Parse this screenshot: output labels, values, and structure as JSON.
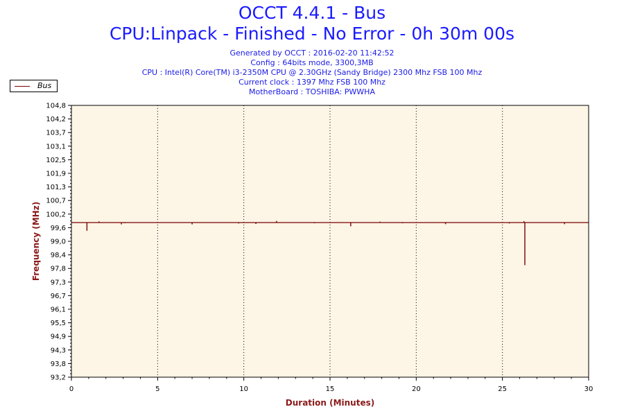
{
  "header": {
    "title": "OCCT 4.4.1 - Bus",
    "subtitle": "CPU:Linpack - Finished - No Error - 0h 30m 00s",
    "info": [
      "Generated by OCCT : 2016-02-20 11:42:52",
      "Config : 64bits mode, 3300,3MB",
      "CPU : Intel(R) Core(TM) i3-2350M CPU @ 2.30GHz (Sandy Bridge) 2300 Mhz FSB 100 Mhz",
      "Current clock : 1397 Mhz FSB 100 Mhz",
      "MotherBoard : TOSHIBA: PWWHA"
    ]
  },
  "chart_data": {
    "type": "line",
    "title": "OCCT 4.4.1 - Bus",
    "xlabel": "Duration (Minutes)",
    "ylabel": "Frequency (MHz)",
    "xlim": [
      0,
      30
    ],
    "ylim": [
      93.2,
      104.8
    ],
    "xticks": [
      0,
      5,
      10,
      15,
      20,
      25,
      30
    ],
    "yticks": [
      "104,8",
      "104,2",
      "103,7",
      "103,1",
      "102,5",
      "101,9",
      "101,3",
      "100,7",
      "100,2",
      "99,6",
      "99,0",
      "98,4",
      "97,8",
      "97,3",
      "96,7",
      "96,1",
      "95,5",
      "94,9",
      "94,3",
      "93,8",
      "93,2"
    ],
    "grid": "vertical dotted",
    "legend": "top-left",
    "colors": {
      "series": "#7a0000",
      "plot_bg": "#fdf5e6",
      "axis_text": "#8b1a1a"
    },
    "series": [
      {
        "name": "Bus",
        "baseline": 99.8,
        "spikes": [
          {
            "x": 0.9,
            "y": 99.45
          },
          {
            "x": 1.6,
            "y": 99.85
          },
          {
            "x": 2.9,
            "y": 99.72
          },
          {
            "x": 3.1,
            "y": 99.77
          },
          {
            "x": 7.0,
            "y": 99.72
          },
          {
            "x": 9.7,
            "y": 99.76
          },
          {
            "x": 10.7,
            "y": 99.74
          },
          {
            "x": 11.9,
            "y": 99.87
          },
          {
            "x": 14.1,
            "y": 99.77
          },
          {
            "x": 16.2,
            "y": 99.64
          },
          {
            "x": 17.9,
            "y": 99.84
          },
          {
            "x": 19.2,
            "y": 99.77
          },
          {
            "x": 21.7,
            "y": 99.73
          },
          {
            "x": 25.4,
            "y": 99.76
          },
          {
            "x": 26.3,
            "y": 97.98
          },
          {
            "x": 26.25,
            "y": 99.86
          },
          {
            "x": 28.6,
            "y": 99.73
          }
        ]
      }
    ]
  }
}
